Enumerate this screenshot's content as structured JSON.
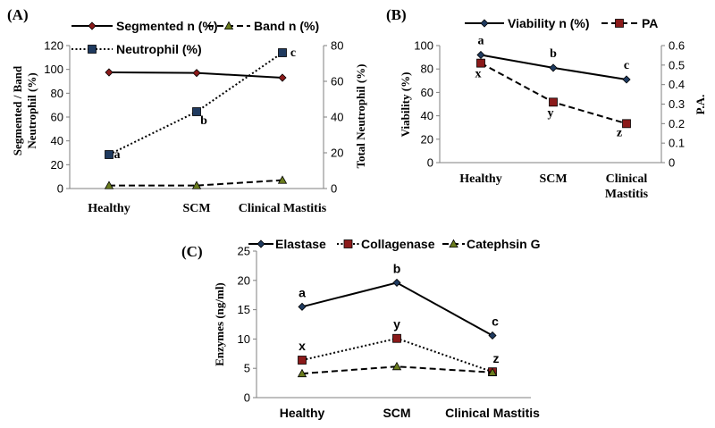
{
  "chart_data": [
    {
      "panel_label": "(A)",
      "type": "line",
      "categories": [
        "Healthy",
        "SCM",
        "Clinical Mastitis"
      ],
      "ylabel": "Segmented / Band Neutrophil (%)",
      "ylim": [
        0,
        120
      ],
      "y_ticks": [
        0,
        20,
        40,
        60,
        80,
        100,
        120
      ],
      "y2label": "Total Neutrophil (%)",
      "y2lim": [
        0,
        80
      ],
      "y2_ticks": [
        0,
        20,
        40,
        60,
        80
      ],
      "legend_position": "top",
      "series": [
        {
          "name": "Segmented n (%)",
          "axis": "left",
          "values": [
            97.5,
            97,
            93
          ],
          "color": "#000000",
          "marker_color": "#8b1a1a",
          "marker": "diamond",
          "dash": "solid",
          "letters": []
        },
        {
          "name": "Band n (%)",
          "axis": "left",
          "values": [
            2.5,
            2.5,
            7
          ],
          "color": "#000000",
          "marker_color": "#6b7d1e",
          "marker": "triangle",
          "dash": "dash",
          "letters": []
        },
        {
          "name": "Neutrophil (%)",
          "axis": "right",
          "values": [
            19,
            43,
            76
          ],
          "color": "#000000",
          "marker_color": "#1f3a5f",
          "marker": "square",
          "dash": "dot",
          "letters": [
            "a",
            "b",
            "c"
          ]
        }
      ]
    },
    {
      "panel_label": "(B)",
      "type": "line",
      "categories": [
        "Healthy",
        "SCM",
        "Clinical Mastitis"
      ],
      "ylabel": "Viability (%)",
      "ylim": [
        0,
        100
      ],
      "y_ticks": [
        0,
        20,
        40,
        60,
        80,
        100
      ],
      "y2label": "P.A.",
      "y2lim": [
        0,
        0.6
      ],
      "y2_ticks": [
        "0",
        "0.1",
        "0.2",
        "0.3",
        "0.4",
        "0.5",
        "0.6"
      ],
      "legend_position": "top",
      "series": [
        {
          "name": "Viability n (%)",
          "axis": "left",
          "values": [
            92,
            81,
            71
          ],
          "color": "#000000",
          "marker_color": "#1f3a5f",
          "marker": "diamond",
          "dash": "solid",
          "letters": [
            "a",
            "b",
            "c"
          ]
        },
        {
          "name": "PA",
          "axis": "right",
          "values": [
            0.51,
            0.31,
            0.2
          ],
          "color": "#000000",
          "marker_color": "#8b1a1a",
          "marker": "square",
          "dash": "dash",
          "letters": [
            "x",
            "y",
            "z"
          ]
        }
      ]
    },
    {
      "panel_label": "(C)",
      "type": "line",
      "categories": [
        "Healthy",
        "SCM",
        "Clinical Mastitis"
      ],
      "ylabel": "Enzymes (ng/ml)",
      "ylim": [
        0,
        25
      ],
      "y_ticks": [
        0,
        5,
        10,
        15,
        20,
        25
      ],
      "legend_position": "top",
      "series": [
        {
          "name": "Elastase",
          "axis": "left",
          "values": [
            15.5,
            19.6,
            10.6
          ],
          "color": "#000000",
          "marker_color": "#1f3a5f",
          "marker": "diamond",
          "dash": "solid",
          "letters": [
            "a",
            "b",
            "c"
          ]
        },
        {
          "name": "Collagenase",
          "axis": "left",
          "values": [
            6.4,
            10.1,
            4.4
          ],
          "color": "#000000",
          "marker_color": "#8b1a1a",
          "marker": "square",
          "dash": "dot",
          "letters": [
            "x",
            "y",
            "z"
          ]
        },
        {
          "name": "Catephsin G",
          "axis": "left",
          "values": [
            4.1,
            5.3,
            4.3
          ],
          "color": "#000000",
          "marker_color": "#6b7d1e",
          "marker": "triangle",
          "dash": "dash",
          "letters": []
        }
      ]
    }
  ]
}
